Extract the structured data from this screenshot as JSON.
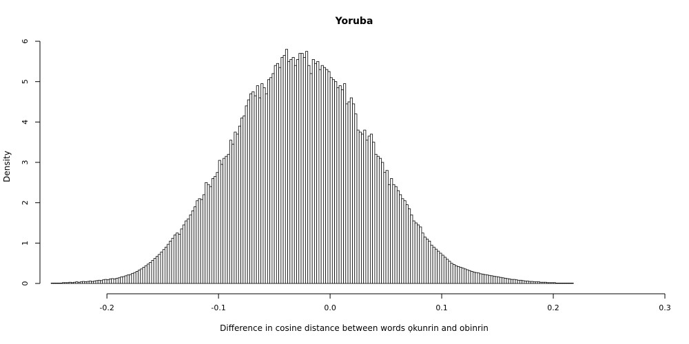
{
  "chart_data": {
    "type": "bar",
    "subtype": "histogram",
    "title": "Yoruba",
    "xlabel": "Difference in cosine distance between words ọkunrin and obinrin",
    "ylabel": "Density",
    "xlim": [
      -0.26,
      0.3
    ],
    "ylim": [
      0,
      6
    ],
    "xticks": [
      -0.2,
      -0.1,
      0.0,
      0.1,
      0.2,
      0.3
    ],
    "xtick_labels": [
      "-0.2",
      "-0.1",
      "0.0",
      "0.1",
      "0.2",
      "0.3"
    ],
    "yticks": [
      0,
      1,
      2,
      3,
      4,
      5,
      6
    ],
    "ytick_labels": [
      "0",
      "1",
      "2",
      "3",
      "4",
      "5",
      "6"
    ],
    "bin_width": 0.002,
    "bin_start": -0.26,
    "bar_fill": "#ffffff",
    "bar_stroke": "#000000",
    "values": [
      0,
      0,
      0,
      0,
      0,
      0.01,
      0.01,
      0.01,
      0.01,
      0.01,
      0.02,
      0.02,
      0.02,
      0.03,
      0.02,
      0.03,
      0.04,
      0.03,
      0.04,
      0.05,
      0.04,
      0.05,
      0.06,
      0.05,
      0.06,
      0.07,
      0.08,
      0.07,
      0.09,
      0.1,
      0.09,
      0.11,
      0.12,
      0.11,
      0.13,
      0.14,
      0.16,
      0.17,
      0.19,
      0.21,
      0.22,
      0.25,
      0.27,
      0.3,
      0.33,
      0.36,
      0.4,
      0.44,
      0.48,
      0.52,
      0.57,
      0.62,
      0.67,
      0.72,
      0.78,
      0.84,
      0.9,
      0.97,
      1.05,
      1.12,
      1.2,
      1.25,
      1.22,
      1.35,
      1.45,
      1.55,
      1.6,
      1.7,
      1.8,
      1.9,
      2.05,
      2.1,
      2.08,
      2.2,
      2.5,
      2.45,
      2.4,
      2.6,
      2.65,
      2.75,
      3.05,
      2.95,
      3.1,
      3.15,
      3.2,
      3.55,
      3.45,
      3.75,
      3.7,
      3.9,
      4.1,
      4.15,
      4.4,
      4.55,
      4.7,
      4.75,
      4.65,
      4.9,
      4.6,
      4.95,
      4.85,
      4.7,
      5.05,
      5.1,
      5.2,
      5.4,
      5.45,
      5.35,
      5.6,
      5.65,
      5.8,
      5.5,
      5.55,
      5.6,
      5.4,
      5.55,
      5.7,
      5.7,
      5.6,
      5.75,
      5.4,
      5.2,
      5.55,
      5.45,
      5.5,
      5.3,
      5.4,
      5.35,
      5.3,
      5.25,
      5.1,
      5.05,
      5.0,
      4.85,
      4.9,
      4.8,
      4.95,
      4.45,
      4.5,
      4.6,
      4.45,
      4.2,
      3.8,
      3.75,
      3.7,
      3.8,
      3.55,
      3.65,
      3.7,
      3.5,
      3.2,
      3.15,
      3.1,
      3.0,
      2.75,
      2.8,
      2.45,
      2.6,
      2.45,
      2.4,
      2.3,
      2.2,
      2.1,
      2.05,
      1.95,
      1.85,
      1.7,
      1.55,
      1.5,
      1.45,
      1.4,
      1.25,
      1.15,
      1.1,
      1.05,
      0.95,
      0.9,
      0.85,
      0.8,
      0.75,
      0.7,
      0.65,
      0.6,
      0.55,
      0.5,
      0.47,
      0.44,
      0.42,
      0.4,
      0.38,
      0.36,
      0.34,
      0.32,
      0.3,
      0.28,
      0.27,
      0.26,
      0.24,
      0.23,
      0.22,
      0.21,
      0.2,
      0.19,
      0.18,
      0.17,
      0.16,
      0.15,
      0.14,
      0.13,
      0.12,
      0.11,
      0.1,
      0.1,
      0.09,
      0.08,
      0.08,
      0.07,
      0.06,
      0.06,
      0.05,
      0.05,
      0.04,
      0.04,
      0.04,
      0.03,
      0.03,
      0.03,
      0.02,
      0.02,
      0.02,
      0.02,
      0.01,
      0.01,
      0.01,
      0.01,
      0.01,
      0.01,
      0.01,
      0.01,
      0,
      0,
      0,
      0,
      0,
      0,
      0,
      0,
      0,
      0,
      0,
      0,
      0,
      0,
      0,
      0,
      0,
      0,
      0,
      0,
      0,
      0,
      0,
      0,
      0,
      0,
      0
    ]
  }
}
